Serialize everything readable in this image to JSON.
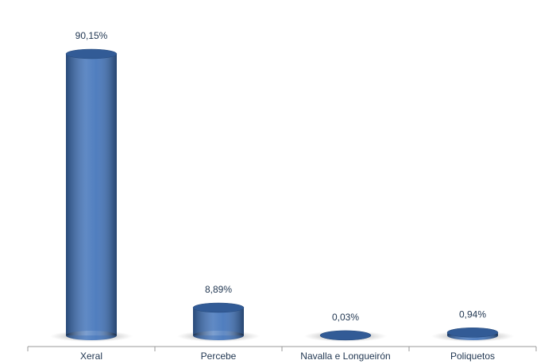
{
  "chart_data": {
    "type": "cylinder-bar",
    "categories": [
      "Xeral",
      "Percebe",
      "Navalla e Longueirón",
      "Poliquetos"
    ],
    "values": [
      90.15,
      8.89,
      0.03,
      0.94
    ],
    "value_labels": [
      "90,15%",
      "8,89%",
      "0,03%",
      "0,94%"
    ],
    "color": "#3d70b8"
  }
}
